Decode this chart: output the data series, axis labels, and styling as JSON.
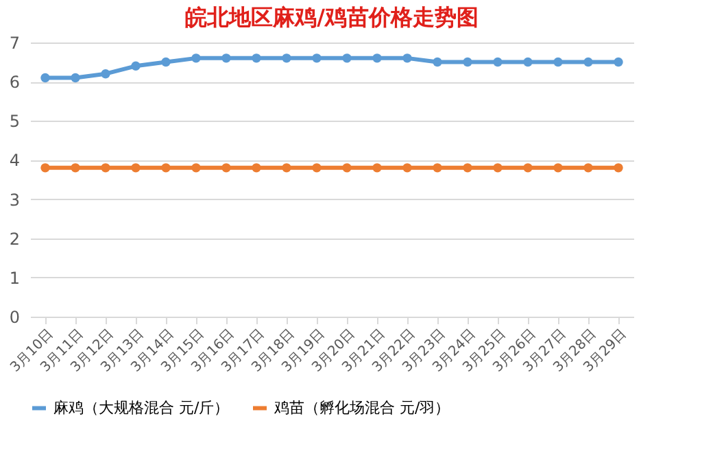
{
  "chart_data": {
    "type": "line",
    "title": "皖北地区麻鸡/鸡苗价格走势图",
    "categories": [
      "3月10日",
      "3月11日",
      "3月12日",
      "3月13日",
      "3月14日",
      "3月15日",
      "3月16日",
      "3月17日",
      "3月18日",
      "3月19日",
      "3月20日",
      "3月21日",
      "3月22日",
      "3月23日",
      "3月24日",
      "3月25日",
      "3月26日",
      "3月27日",
      "3月28日",
      "3月29日"
    ],
    "series": [
      {
        "name": "麻鸡（大规格混合 元/斤）",
        "color": "#5b9bd5",
        "values": [
          6.1,
          6.1,
          6.2,
          6.4,
          6.5,
          6.6,
          6.6,
          6.6,
          6.6,
          6.6,
          6.6,
          6.6,
          6.6,
          6.5,
          6.5,
          6.5,
          6.5,
          6.5,
          6.5,
          6.5
        ]
      },
      {
        "name": "鸡苗（孵化场混合 元/羽）",
        "color": "#ed7d31",
        "values": [
          3.8,
          3.8,
          3.8,
          3.8,
          3.8,
          3.8,
          3.8,
          3.8,
          3.8,
          3.8,
          3.8,
          3.8,
          3.8,
          3.8,
          3.8,
          3.8,
          3.8,
          3.8,
          3.8,
          3.8
        ]
      }
    ],
    "ylim": [
      0,
      7
    ],
    "yticks": [
      0,
      1,
      2,
      3,
      4,
      5,
      6,
      7
    ],
    "grid": "y",
    "legend": "bottom",
    "marker": "circle",
    "line_style": "solid"
  }
}
